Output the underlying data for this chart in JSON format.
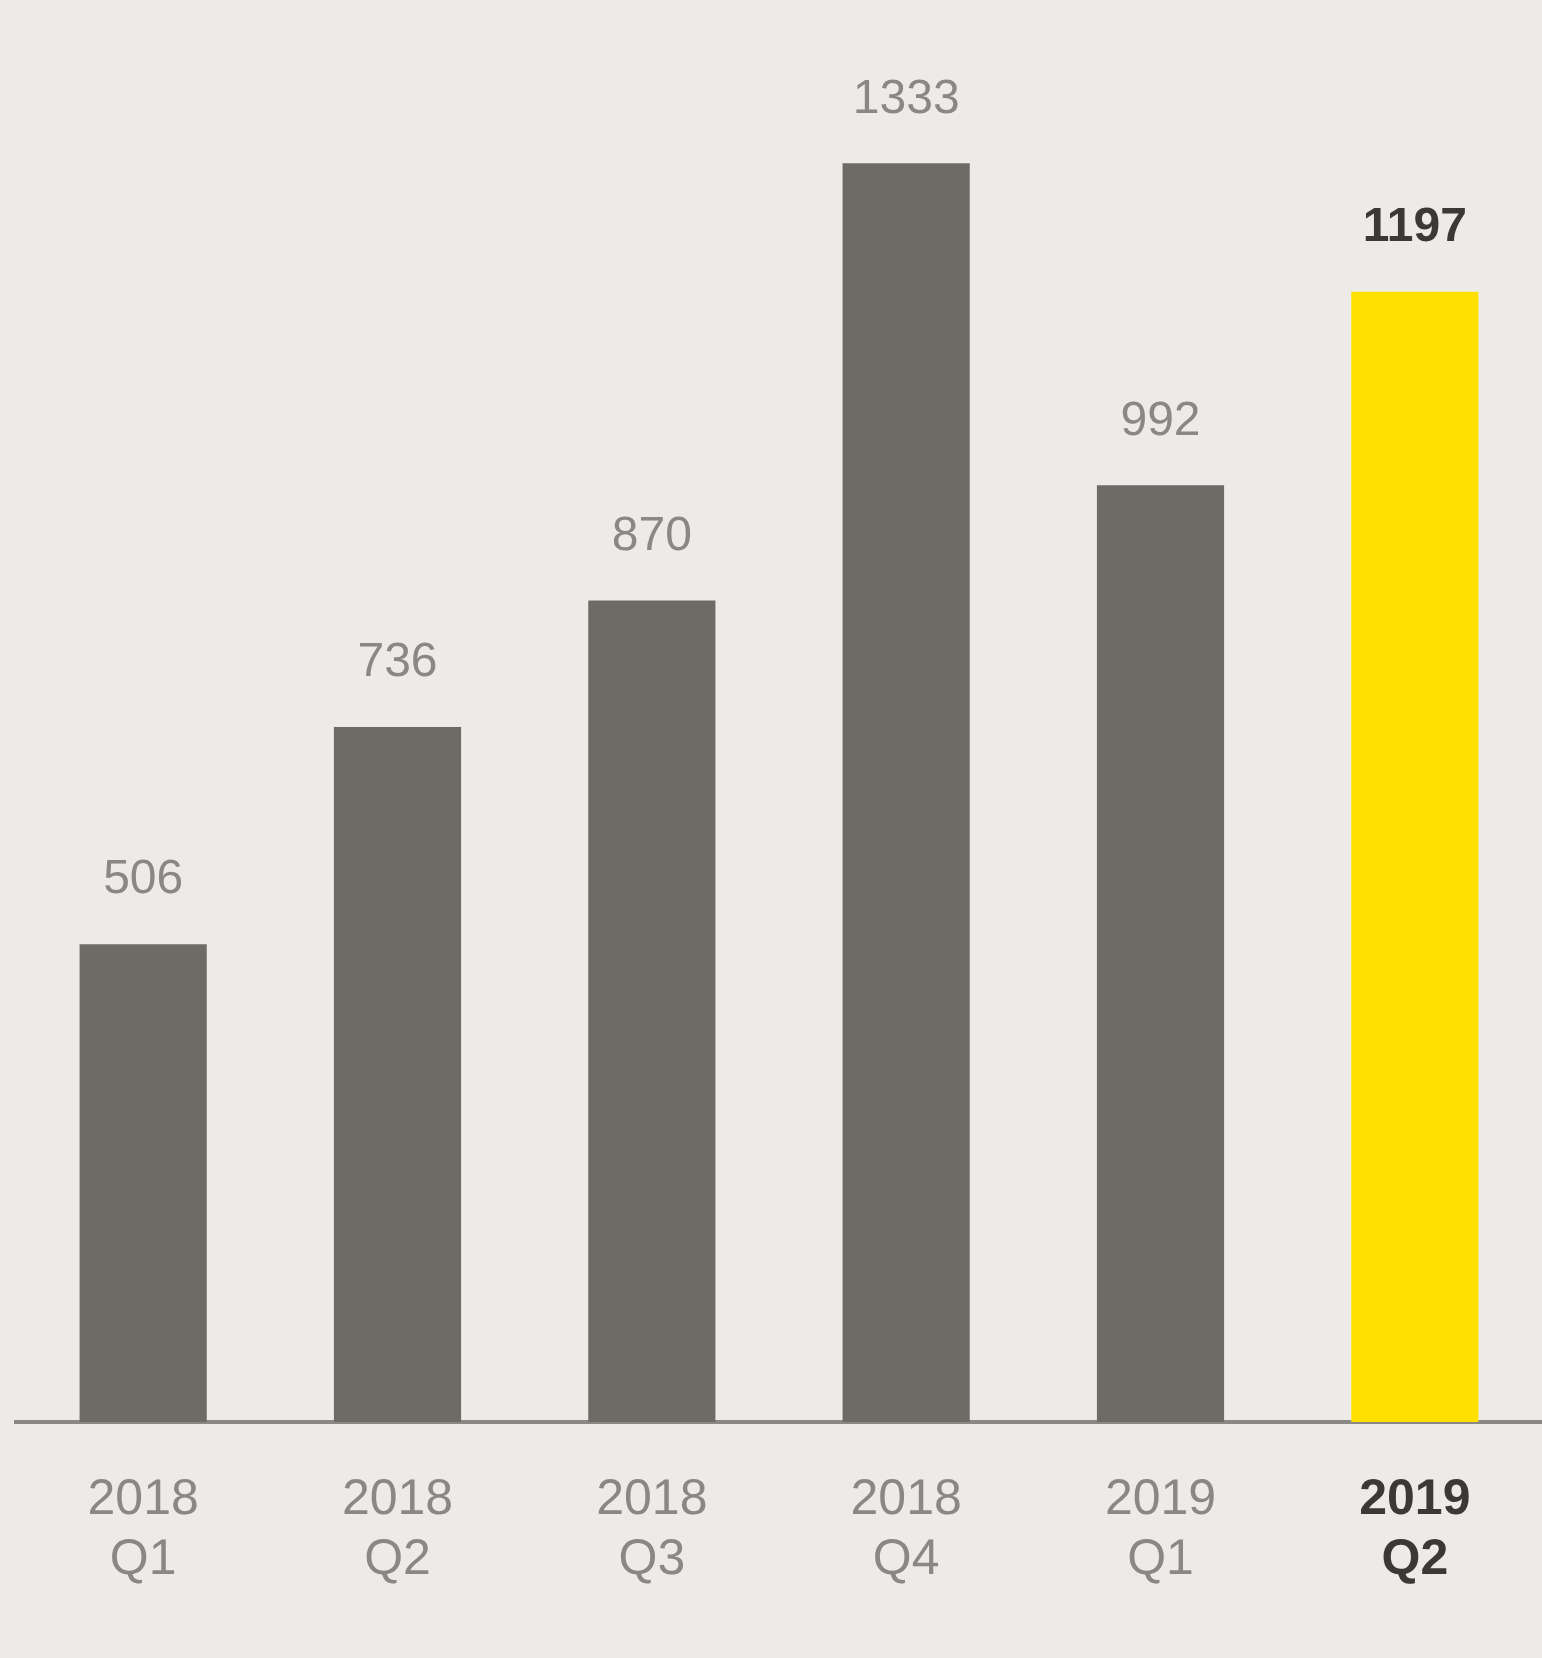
{
  "chart_data": {
    "type": "bar",
    "categories": [
      "2018 Q1",
      "2018 Q2",
      "2018 Q3",
      "2018 Q4",
      "2019 Q1",
      "2019 Q2"
    ],
    "values": [
      506,
      736,
      870,
      1333,
      992,
      1197
    ],
    "colors": [
      "#6d6b66",
      "#6d6b66",
      "#6d6b66",
      "#6d6b66",
      "#6d6b66",
      "#ffe000"
    ],
    "tick_labels": "x",
    "grid": false,
    "legend": false,
    "data_labels": true
  }
}
